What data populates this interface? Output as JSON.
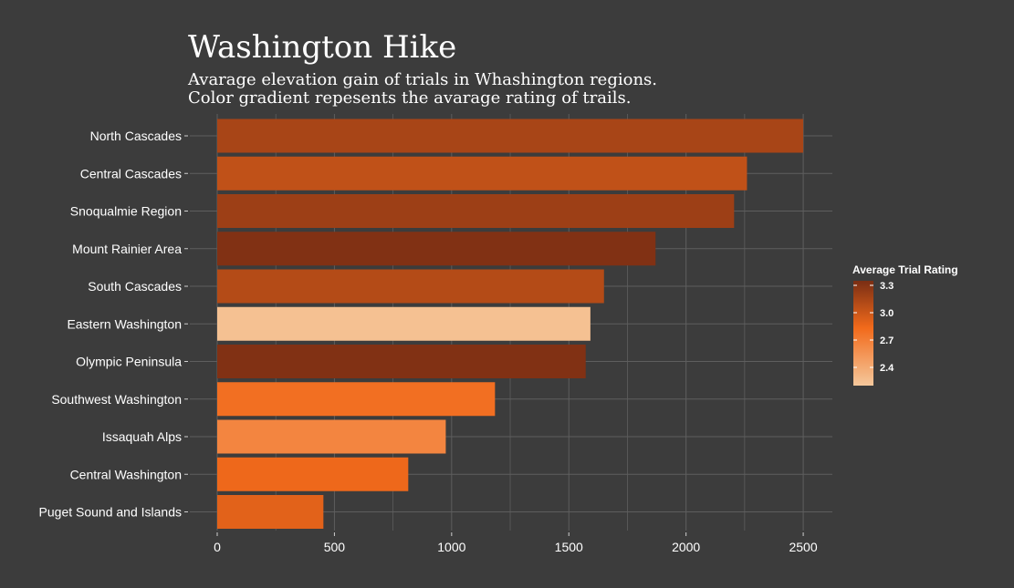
{
  "chart_data": {
    "type": "bar",
    "orientation": "horizontal",
    "title": "Washington Hike",
    "subtitle_lines": [
      "Avarage elevation gain of trials in Whashington regions.",
      "Color gradient repesents the avarage rating of trails."
    ],
    "xlabel": "",
    "ylabel": "",
    "xlim": [
      0,
      2600
    ],
    "x_ticks": [
      0,
      500,
      1000,
      1500,
      2000,
      2500
    ],
    "x_tick_labels": [
      "0",
      "500",
      "1000",
      "1500",
      "2000",
      "2500"
    ],
    "grid": true,
    "categories": [
      "North Cascades",
      "Central Cascades",
      "Snoqualmie Region",
      "Mount Rainier Area",
      "South Cascades",
      "Eastern Washington",
      "Olympic Peninsula",
      "Southwest Washington",
      "Issaquah Alps",
      "Central Washington",
      "Puget Sound and Islands"
    ],
    "values": [
      2500,
      2260,
      2205,
      1870,
      1650,
      1592,
      1572,
      1185,
      975,
      815,
      453
    ],
    "ratings": [
      3.15,
      3.05,
      3.2,
      3.32,
      3.1,
      2.25,
      3.32,
      2.8,
      2.65,
      2.85,
      2.9
    ],
    "legend": {
      "title": "Average Trial Rating",
      "ticks": [
        "3.3",
        "3.0",
        "2.7",
        "2.4"
      ],
      "tick_values": [
        3.3,
        3.0,
        2.7,
        2.4
      ],
      "range": [
        2.2,
        3.35
      ],
      "placement": "right"
    },
    "colors": {
      "background": "#3c3c3c",
      "grid": "#5e5e5e",
      "text": "#ffffff",
      "gradient_low": "#f5c89c",
      "gradient_mid": "#f26a1b",
      "gradient_high": "#7a2e14"
    }
  }
}
